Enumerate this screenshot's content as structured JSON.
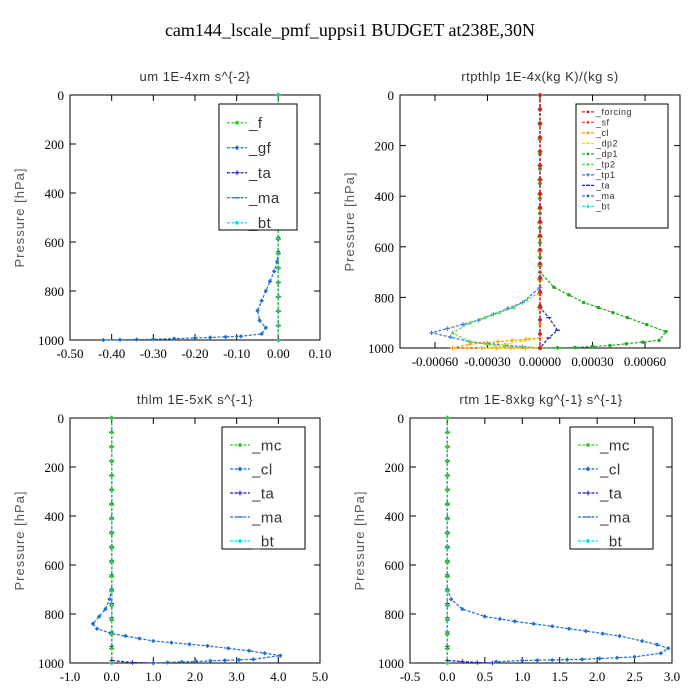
{
  "title": "cam144_lscale_pmf_uppsi1  BUDGET at238E,30N",
  "chart_data": [
    {
      "type": "line",
      "subtitle": "um   1E-4xm s^{-2}",
      "ylabel": "Pressure [hPa]",
      "xlim": [
        -0.5,
        0.1
      ],
      "ylim": [
        1000,
        0
      ],
      "xticks": [
        -0.5,
        -0.4,
        -0.3,
        -0.2,
        -0.1,
        0.0,
        0.1
      ],
      "xtick_labels": [
        "-0.50",
        "-0.40",
        "-0.30",
        "-0.20",
        "-0.10",
        "0.00",
        "0.10"
      ],
      "yticks": [
        0,
        200,
        400,
        600,
        800,
        1000
      ],
      "legend_placement": "top-right",
      "series": [
        {
          "name": "_f",
          "color": "#33cc33",
          "x": [
            0.0,
            0.0
          ],
          "y": [
            0,
            1000
          ]
        },
        {
          "name": "_gf",
          "color": "#1f6fd6",
          "x": [
            0.0,
            0.0,
            -0.003,
            -0.01,
            -0.02,
            -0.03,
            -0.04,
            -0.05,
            -0.045,
            -0.03,
            -0.04,
            -0.09,
            -0.2,
            -0.3,
            -0.42
          ],
          "y": [
            0,
            640,
            680,
            720,
            760,
            800,
            840,
            880,
            920,
            950,
            975,
            985,
            992,
            997,
            1000
          ]
        },
        {
          "name": "_ta",
          "color": "#1a1acc",
          "x": [
            0.0,
            0.0
          ],
          "y": [
            0,
            1000
          ]
        },
        {
          "name": "_ma",
          "color": "#2a6ad6",
          "x": [
            0.0,
            0.0
          ],
          "y": [
            0,
            1000
          ]
        },
        {
          "name": "_bt",
          "color": "#00e5e5",
          "x": [
            0.0,
            0.0
          ],
          "y": [
            0,
            1000
          ]
        }
      ]
    },
    {
      "type": "line",
      "subtitle": "rtpthlp   1E-4x(kg K)/(kg s)",
      "ylabel": "Pressure [hPa]",
      "xlim": [
        -0.0008,
        0.0008
      ],
      "ylim": [
        1000,
        0
      ],
      "xticks": [
        -0.0006,
        -0.0003,
        0.0,
        0.0003,
        0.0006
      ],
      "xtick_labels": [
        "-0.00060",
        "-0.00030",
        "0.00000",
        "0.00030",
        "0.00060"
      ],
      "yticks": [
        0,
        200,
        400,
        600,
        800,
        1000
      ],
      "legend_placement": "top-right",
      "series": [
        {
          "name": "_forcing",
          "color": "#cc2222",
          "x": [
            0.0,
            0.0
          ],
          "y": [
            0,
            1000
          ]
        },
        {
          "name": "_sf",
          "color": "#ff3333",
          "x": [
            0.0,
            0.0
          ],
          "y": [
            0,
            1000
          ]
        },
        {
          "name": "_cl",
          "color": "#ff9900",
          "x": [
            0.0,
            0.0,
            -0.0004,
            -0.0005,
            0.0
          ],
          "y": [
            0,
            960,
            985,
            1000,
            1000
          ]
        },
        {
          "name": "_dp2",
          "color": "#e6e600",
          "x": [
            0.0,
            0.0,
            -0.0002,
            -0.0003,
            0.0
          ],
          "y": [
            0,
            960,
            985,
            1000,
            1000
          ]
        },
        {
          "name": "_dp1",
          "color": "#22aa22",
          "x": [
            0.0,
            0.0,
            8e-05,
            0.00025,
            0.0005,
            0.00072,
            0.00068,
            0.0004,
            0.0002,
            0.0
          ],
          "y": [
            0,
            700,
            760,
            820,
            880,
            935,
            970,
            990,
            998,
            1000
          ]
        },
        {
          "name": "_tp2",
          "color": "#55dd55",
          "x": [
            0.0,
            0.0,
            -0.00015,
            -0.0004,
            -0.0005,
            -0.0004,
            -0.0002,
            0.0
          ],
          "y": [
            0,
            780,
            840,
            900,
            940,
            975,
            995,
            1000
          ]
        },
        {
          "name": "_tp1",
          "color": "#3377dd",
          "x": [
            0.0,
            0.0,
            -0.0001,
            -0.00035,
            -0.00062,
            -0.0004,
            -0.0001,
            0.0
          ],
          "y": [
            0,
            760,
            820,
            890,
            940,
            975,
            995,
            1000
          ]
        },
        {
          "name": "_ta",
          "color": "#2222cc",
          "x": [
            0.0,
            0.0,
            5e-05,
            0.0001,
            5e-05,
            0.0
          ],
          "y": [
            0,
            840,
            880,
            930,
            960,
            1000
          ]
        },
        {
          "name": "_ma",
          "color": "#2a6ad6",
          "x": [
            0.0,
            0.0
          ],
          "y": [
            0,
            1000
          ]
        },
        {
          "name": "_bt",
          "color": "#00e5e5",
          "x": [
            0.0,
            0.0
          ],
          "y": [
            0,
            1000
          ]
        }
      ]
    },
    {
      "type": "line",
      "subtitle": "thlm   1E-5xK s^{-1}",
      "ylabel": "Pressure [hPa]",
      "xlim": [
        -1.0,
        5.0
      ],
      "ylim": [
        1000,
        0
      ],
      "xticks": [
        -1.0,
        0.0,
        1.0,
        2.0,
        3.0,
        4.0,
        5.0
      ],
      "xtick_labels": [
        "-1.0",
        "0.0",
        "1.0",
        "2.0",
        "3.0",
        "4.0",
        "5.0"
      ],
      "yticks": [
        0,
        200,
        400,
        600,
        800,
        1000
      ],
      "legend_placement": "top-right",
      "series": [
        {
          "name": "_mc",
          "color": "#33cc33",
          "x": [
            0.0,
            0.0
          ],
          "y": [
            0,
            1000
          ]
        },
        {
          "name": "_cl",
          "color": "#1f6fd6",
          "x": [
            0.0,
            0.0,
            -0.05,
            -0.15,
            -0.3,
            -0.45,
            -0.35,
            0.0,
            1.0,
            2.3,
            3.3,
            4.05,
            3.4,
            1.0
          ],
          "y": [
            0,
            700,
            740,
            780,
            810,
            840,
            860,
            880,
            910,
            930,
            950,
            970,
            985,
            1000
          ]
        },
        {
          "name": "_ta",
          "color": "#1a1acc",
          "x": [
            0.0,
            0.0,
            0.5,
            1.0
          ],
          "y": [
            0,
            990,
            998,
            1000
          ]
        },
        {
          "name": "_ma",
          "color": "#2a6ad6",
          "x": [
            0.0,
            0.0
          ],
          "y": [
            0,
            1000
          ]
        },
        {
          "name": "_bt",
          "color": "#00e5e5",
          "x": [
            0.0,
            0.0
          ],
          "y": [
            0,
            1000
          ]
        }
      ]
    },
    {
      "type": "line",
      "subtitle": "rtm   1E-8xkg kg^{-1} s^{-1}",
      "ylabel": "Pressure [hPa]",
      "xlim": [
        -0.5,
        3.0
      ],
      "ylim": [
        1000,
        0
      ],
      "xticks": [
        -0.5,
        0.0,
        0.5,
        1.0,
        1.5,
        2.0,
        2.5,
        3.0
      ],
      "xtick_labels": [
        "-0.5",
        "0.0",
        "0.5",
        "1.0",
        "1.5",
        "2.0",
        "2.5",
        "3.0"
      ],
      "yticks": [
        0,
        200,
        400,
        600,
        800,
        1000
      ],
      "legend_placement": "top-right",
      "series": [
        {
          "name": "_mc",
          "color": "#33cc33",
          "x": [
            0.0,
            0.0
          ],
          "y": [
            0,
            1000
          ]
        },
        {
          "name": "_cl",
          "color": "#1f6fd6",
          "x": [
            0.0,
            0.0,
            0.05,
            0.2,
            0.5,
            0.9,
            1.4,
            1.85,
            2.3,
            2.6,
            2.8,
            2.95,
            2.85,
            2.5,
            1.8,
            1.0,
            0.65
          ],
          "y": [
            0,
            700,
            740,
            780,
            810,
            830,
            850,
            870,
            890,
            910,
            925,
            940,
            960,
            975,
            985,
            990,
            995
          ]
        },
        {
          "name": "_ta",
          "color": "#1a1acc",
          "x": [
            0.0,
            0.0,
            0.4,
            0.6
          ],
          "y": [
            0,
            990,
            998,
            1000
          ]
        },
        {
          "name": "_ma",
          "color": "#2a6ad6",
          "x": [
            0.0,
            0.0
          ],
          "y": [
            0,
            1000
          ]
        },
        {
          "name": "_bt",
          "color": "#00e5e5",
          "x": [
            0.0,
            0.0
          ],
          "y": [
            0,
            1000
          ]
        }
      ]
    }
  ]
}
